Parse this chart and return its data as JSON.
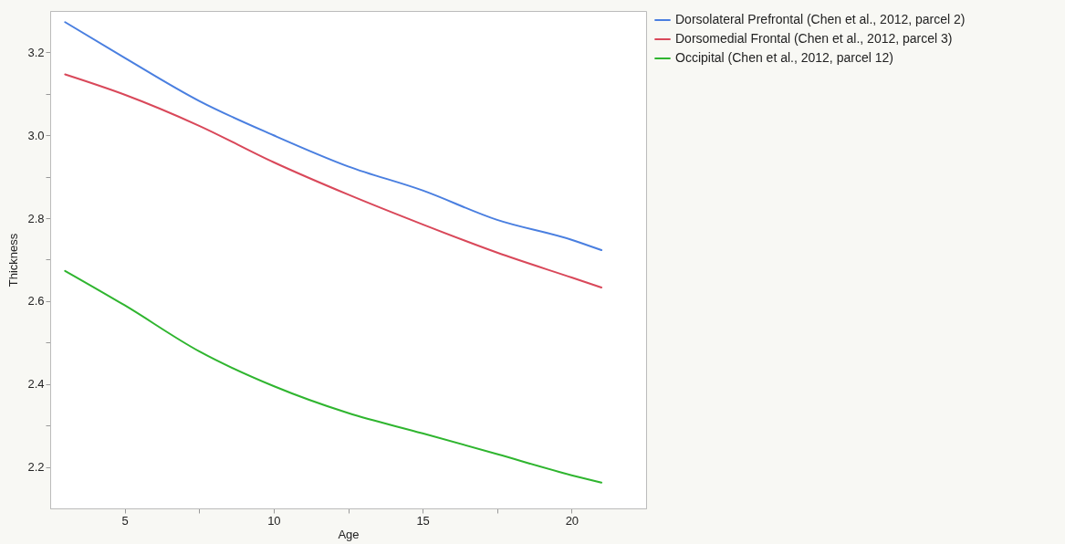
{
  "chart_data": {
    "type": "line",
    "xlabel": "Age",
    "ylabel": "Thickness",
    "x": [
      3,
      5,
      7.5,
      10,
      12.5,
      15,
      17.5,
      20,
      21
    ],
    "series": [
      {
        "name": "Dorsolateral Prefrontal (Chen et al., 2012, parcel 2)",
        "color": "#4a7fe0",
        "values": [
          3.273,
          3.187,
          3.083,
          3.0,
          2.925,
          2.867,
          2.796,
          2.748,
          2.723
        ]
      },
      {
        "name": "Dorsomedial Frontal (Chen et al., 2012, parcel 3)",
        "color": "#d9485a",
        "values": [
          3.147,
          3.098,
          3.023,
          2.935,
          2.857,
          2.785,
          2.717,
          2.657,
          2.633
        ]
      },
      {
        "name": "Occipital (Chen et al., 2012, parcel 12)",
        "color": "#2fb52f",
        "values": [
          2.673,
          2.59,
          2.479,
          2.395,
          2.33,
          2.281,
          2.231,
          2.18,
          2.162
        ]
      }
    ],
    "xlim": [
      2.5,
      22.5
    ],
    "ylim": [
      2.1,
      3.3
    ],
    "xticks": [
      5,
      {
        "value": 7.5,
        "label": null
      },
      10,
      {
        "value": 12.5,
        "label": null
      },
      15,
      {
        "value": 17.5,
        "label": null
      },
      20
    ],
    "yticks": [
      2.2,
      {
        "value": 2.3,
        "label": null
      },
      2.4,
      {
        "value": 2.5,
        "label": null
      },
      2.6,
      {
        "value": 2.7,
        "label": null
      },
      2.8,
      {
        "value": 2.9,
        "label": null
      },
      {
        "value": 3.0,
        "label": "3.0"
      },
      {
        "value": 3.1,
        "label": null
      },
      3.2
    ],
    "grid": false,
    "legend": "top right",
    "marker": "none",
    "line_style": "solid"
  }
}
